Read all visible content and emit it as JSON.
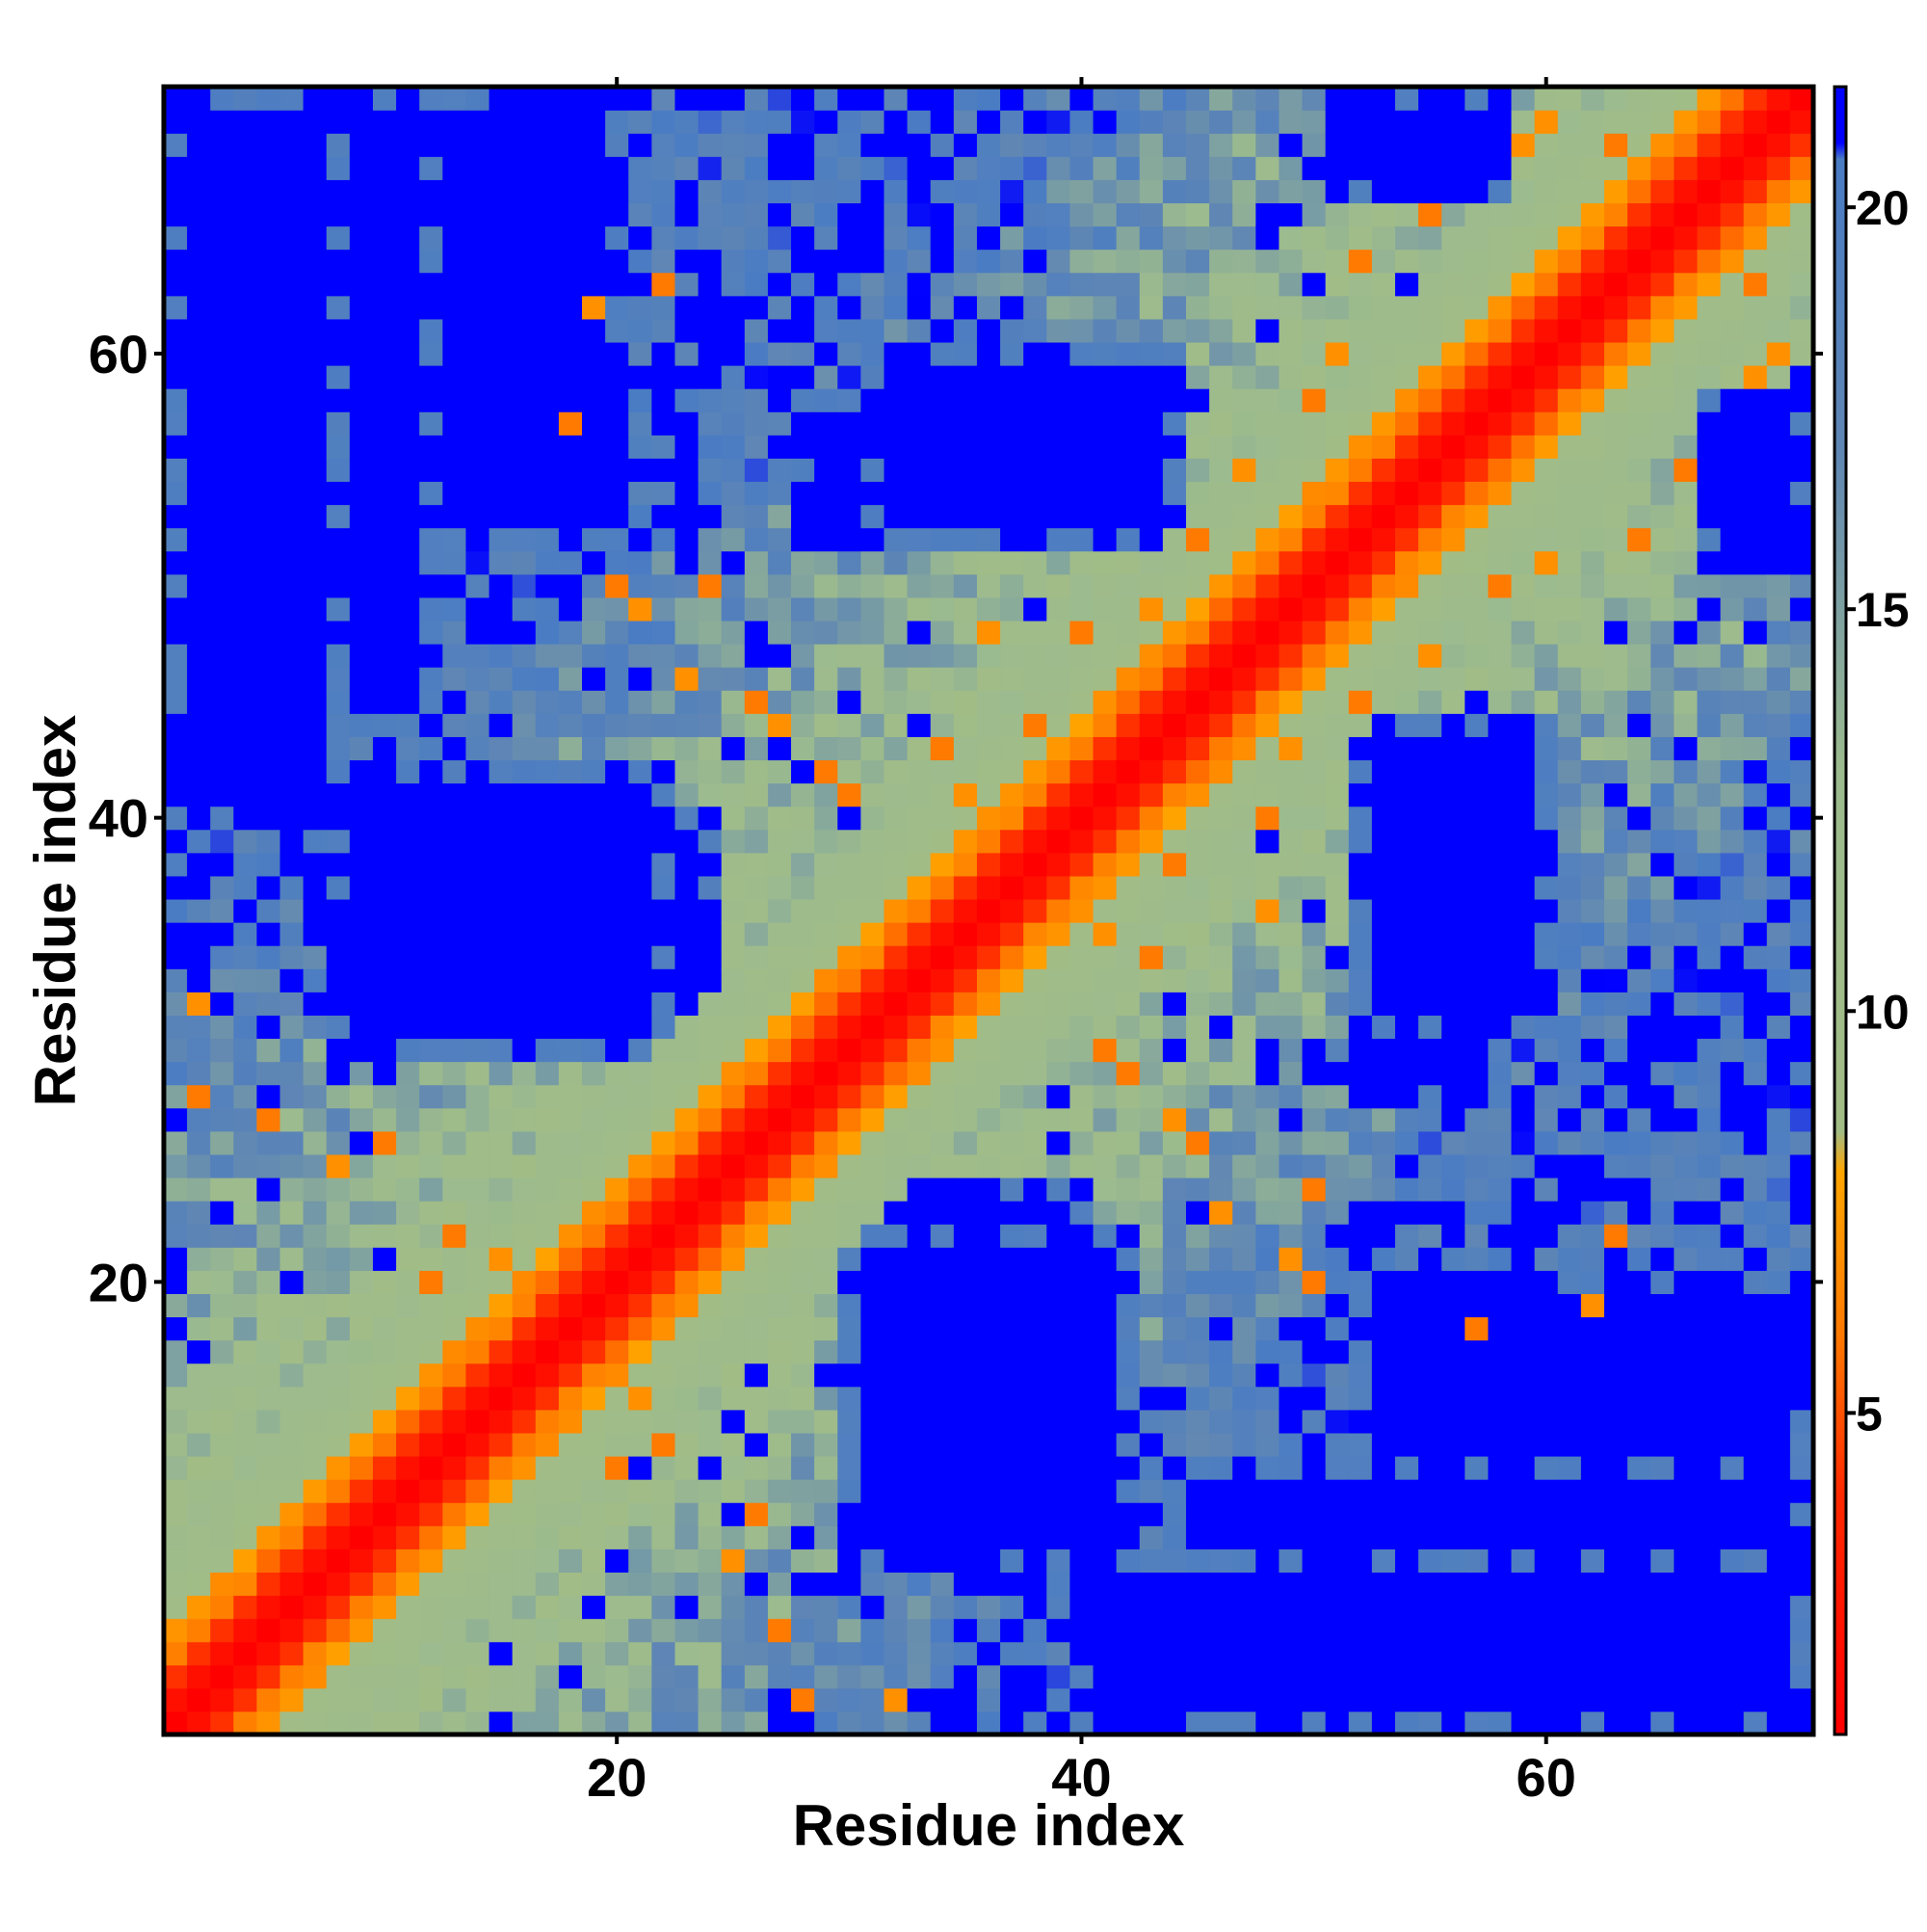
{
  "chart_data": {
    "type": "heatmap",
    "title": "",
    "xlabel": "Residue index",
    "ylabel": "Residue index",
    "n_residues": 71,
    "xlim": [
      1,
      71
    ],
    "ylim": [
      1,
      71
    ],
    "x_ticks": [
      20,
      40,
      60
    ],
    "y_ticks": [
      20,
      40,
      60
    ],
    "symmetric": true,
    "grid": false,
    "colorbar": {
      "placement": "right",
      "min": 1,
      "max": 21.5,
      "ticks": [
        5,
        10,
        15,
        20
      ],
      "stops": [
        {
          "value": 1,
          "color": "#ff0000"
        },
        {
          "value": 4,
          "color": "#ff2a00"
        },
        {
          "value": 6,
          "color": "#ff7a00"
        },
        {
          "value": 8,
          "color": "#ffa500"
        },
        {
          "value": 8.5,
          "color": "#a2bc85"
        },
        {
          "value": 13,
          "color": "#9cbb8e"
        },
        {
          "value": 17,
          "color": "#5f86b4"
        },
        {
          "value": 20.6,
          "color": "#4a7cc4"
        },
        {
          "value": 20.8,
          "color": "#0000ff"
        },
        {
          "value": 21.5,
          "color": "#0000ff"
        }
      ]
    },
    "contact_map": {
      "description": "pairwise C-alpha distance map (symmetric); values in Angstrom-like units, saturating near 21",
      "backbone_step": 3.8,
      "diagonal_band": "red within |i-j|<=2, orange to |i-j|~4, green to |i-j|~8",
      "far_blocks": [
        {
          "i_range": [
            1,
            20
          ],
          "j_range": [
            52,
            71
          ],
          "value": 21.5
        },
        {
          "i_range": [
            1,
            12
          ],
          "j_range": [
            44,
            71
          ],
          "value": 21.5
        },
        {
          "i_range": [
            1,
            8
          ],
          "j_range": [
            40,
            71
          ],
          "value": 21.5
        },
        {
          "i_range": [
            12,
            24
          ],
          "j_range": [
            30,
            40
          ],
          "value": 21.5
        },
        {
          "i_range": [
            30,
            42
          ],
          "j_range": [
            8,
            22
          ],
          "value": 21.5
        },
        {
          "i_range": [
            52,
            58
          ],
          "j_range": [
            28,
            42
          ],
          "value": 21.5
        },
        {
          "i_range": [
            31,
            44
          ],
          "j_range": [
            52,
            60
          ],
          "value": 21.5
        },
        {
          "i_range": [
            67,
            71
          ],
          "j_range": [
            51,
            58
          ],
          "value": 21.5
        }
      ],
      "close_contacts": [
        {
          "i": 2,
          "j": 28,
          "value": 6
        },
        {
          "i": 5,
          "j": 27,
          "value": 6
        },
        {
          "i": 2,
          "j": 32,
          "value": 7
        },
        {
          "i": 8,
          "j": 25,
          "value": 7
        },
        {
          "i": 10,
          "j": 26,
          "value": 6
        },
        {
          "i": 12,
          "j": 20,
          "value": 6
        },
        {
          "i": 13,
          "j": 22,
          "value": 6
        },
        {
          "i": 15,
          "j": 21,
          "value": 7
        },
        {
          "i": 20,
          "j": 50,
          "value": 6
        },
        {
          "i": 21,
          "j": 49,
          "value": 7
        },
        {
          "i": 23,
          "j": 46,
          "value": 7
        },
        {
          "i": 24,
          "j": 50,
          "value": 6
        },
        {
          "i": 26,
          "j": 45,
          "value": 6
        },
        {
          "i": 27,
          "j": 44,
          "value": 7
        },
        {
          "i": 29,
          "j": 42,
          "value": 6
        },
        {
          "i": 30,
          "j": 41,
          "value": 6
        },
        {
          "i": 35,
          "j": 41,
          "value": 7
        },
        {
          "i": 38,
          "j": 44,
          "value": 6
        },
        {
          "i": 40,
          "j": 48,
          "value": 6
        },
        {
          "i": 43,
          "j": 49,
          "value": 7
        },
        {
          "i": 45,
          "j": 52,
          "value": 6
        },
        {
          "i": 47,
          "j": 55,
          "value": 7
        },
        {
          "i": 50,
          "j": 58,
          "value": 6
        },
        {
          "i": 51,
          "j": 60,
          "value": 7
        },
        {
          "i": 52,
          "j": 64,
          "value": 6
        },
        {
          "i": 55,
          "j": 66,
          "value": 6
        },
        {
          "i": 60,
          "j": 70,
          "value": 7
        },
        {
          "i": 63,
          "j": 69,
          "value": 6
        },
        {
          "i": 69,
          "j": 59,
          "value": 7
        },
        {
          "i": 18,
          "j": 57,
          "value": 6
        },
        {
          "i": 19,
          "j": 62,
          "value": 7
        },
        {
          "i": 22,
          "j": 63,
          "value": 6
        },
        {
          "i": 34,
          "j": 43,
          "value": 6
        },
        {
          "i": 36,
          "j": 48,
          "value": 7
        }
      ]
    }
  }
}
